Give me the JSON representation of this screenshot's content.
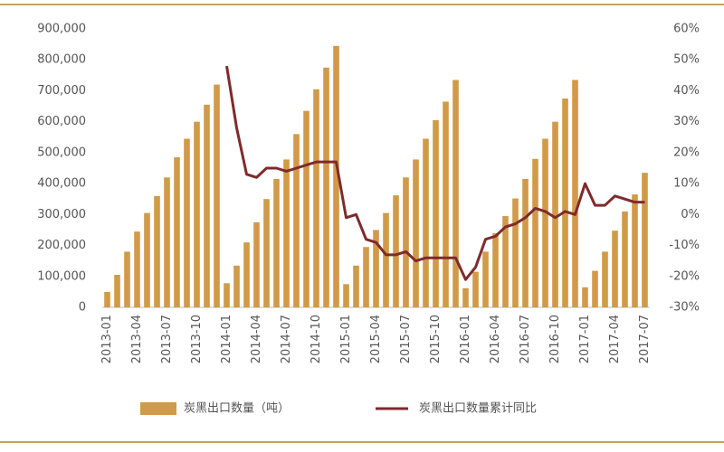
{
  "chart_data": {
    "type": "bar_line",
    "categories": [
      "2013-01",
      null,
      null,
      "2013-04",
      null,
      null,
      "2013-07",
      null,
      null,
      "2013-10",
      null,
      null,
      "2014-01",
      null,
      null,
      "2014-04",
      null,
      null,
      "2014-07",
      null,
      null,
      "2014-10",
      null,
      null,
      "2015-01",
      null,
      null,
      "2015-04",
      null,
      null,
      "2015-07",
      null,
      null,
      "2015-10",
      null,
      null,
      "2016-01",
      null,
      null,
      "2016-04",
      null,
      null,
      "2016-07",
      null,
      null,
      "2016-10",
      null,
      null,
      "2017-01",
      null,
      null,
      "2017-04",
      null,
      null,
      "2017-07"
    ],
    "series": [
      {
        "name": "炭黑出口数量（吨）",
        "type": "bar",
        "color": "#d09a48",
        "values": [
          50000,
          105000,
          180000,
          245000,
          305000,
          360000,
          420000,
          485000,
          545000,
          600000,
          655000,
          720000,
          78000,
          135000,
          210000,
          275000,
          350000,
          415000,
          478000,
          560000,
          635000,
          705000,
          775000,
          845000,
          75000,
          135000,
          195000,
          250000,
          305000,
          362000,
          420000,
          478000,
          545000,
          605000,
          665000,
          735000,
          62000,
          115000,
          180000,
          240000,
          295000,
          352000,
          415000,
          480000,
          545000,
          600000,
          675000,
          735000,
          65000,
          118000,
          180000,
          248000,
          310000,
          365000,
          435000
        ]
      },
      {
        "name": "炭黑出口数量累计同比",
        "type": "line",
        "axis": "y2",
        "color": "#7f2a2c",
        "values": [
          null,
          null,
          null,
          null,
          null,
          null,
          null,
          null,
          null,
          null,
          null,
          null,
          48,
          28,
          13,
          12,
          15,
          15,
          14,
          15,
          16,
          17,
          17,
          17,
          -1,
          0,
          -8,
          -9,
          -13,
          -13,
          -12,
          -15,
          -14,
          -14,
          -14,
          -14,
          -21,
          -17,
          -8,
          -7,
          -4,
          -3,
          -1,
          2,
          1,
          -1,
          1,
          0,
          10,
          3,
          3,
          6,
          5,
          4,
          4
        ]
      }
    ],
    "ylim": [
      0,
      900000
    ],
    "yticks": [
      0,
      {
        "value": 100000,
        "label": "100,000"
      },
      {
        "value": 200000,
        "label": "200,000"
      },
      {
        "value": 300000,
        "label": "300,000"
      },
      {
        "value": 400000,
        "label": "400,000"
      },
      {
        "value": 500000,
        "label": "500,000"
      },
      {
        "value": 600000,
        "label": "600,000"
      },
      {
        "value": 700000,
        "label": "700,000"
      },
      {
        "value": 800000,
        "label": "800,000"
      },
      {
        "value": 900000,
        "label": "900,000"
      }
    ],
    "y2lim": [
      -30,
      60
    ],
    "y2ticks": [
      {
        "value": -30,
        "label": "-30%"
      },
      {
        "value": -20,
        "label": "-20%"
      },
      {
        "value": -10,
        "label": "-10%"
      },
      {
        "value": 0,
        "label": "0%"
      },
      {
        "value": 10,
        "label": "10%"
      },
      {
        "value": 20,
        "label": "20%"
      },
      {
        "value": 30,
        "label": "30%"
      },
      {
        "value": 40,
        "label": "40%"
      },
      {
        "value": 50,
        "label": "50%"
      },
      {
        "value": 60,
        "label": "60%"
      }
    ],
    "grid": false
  }
}
